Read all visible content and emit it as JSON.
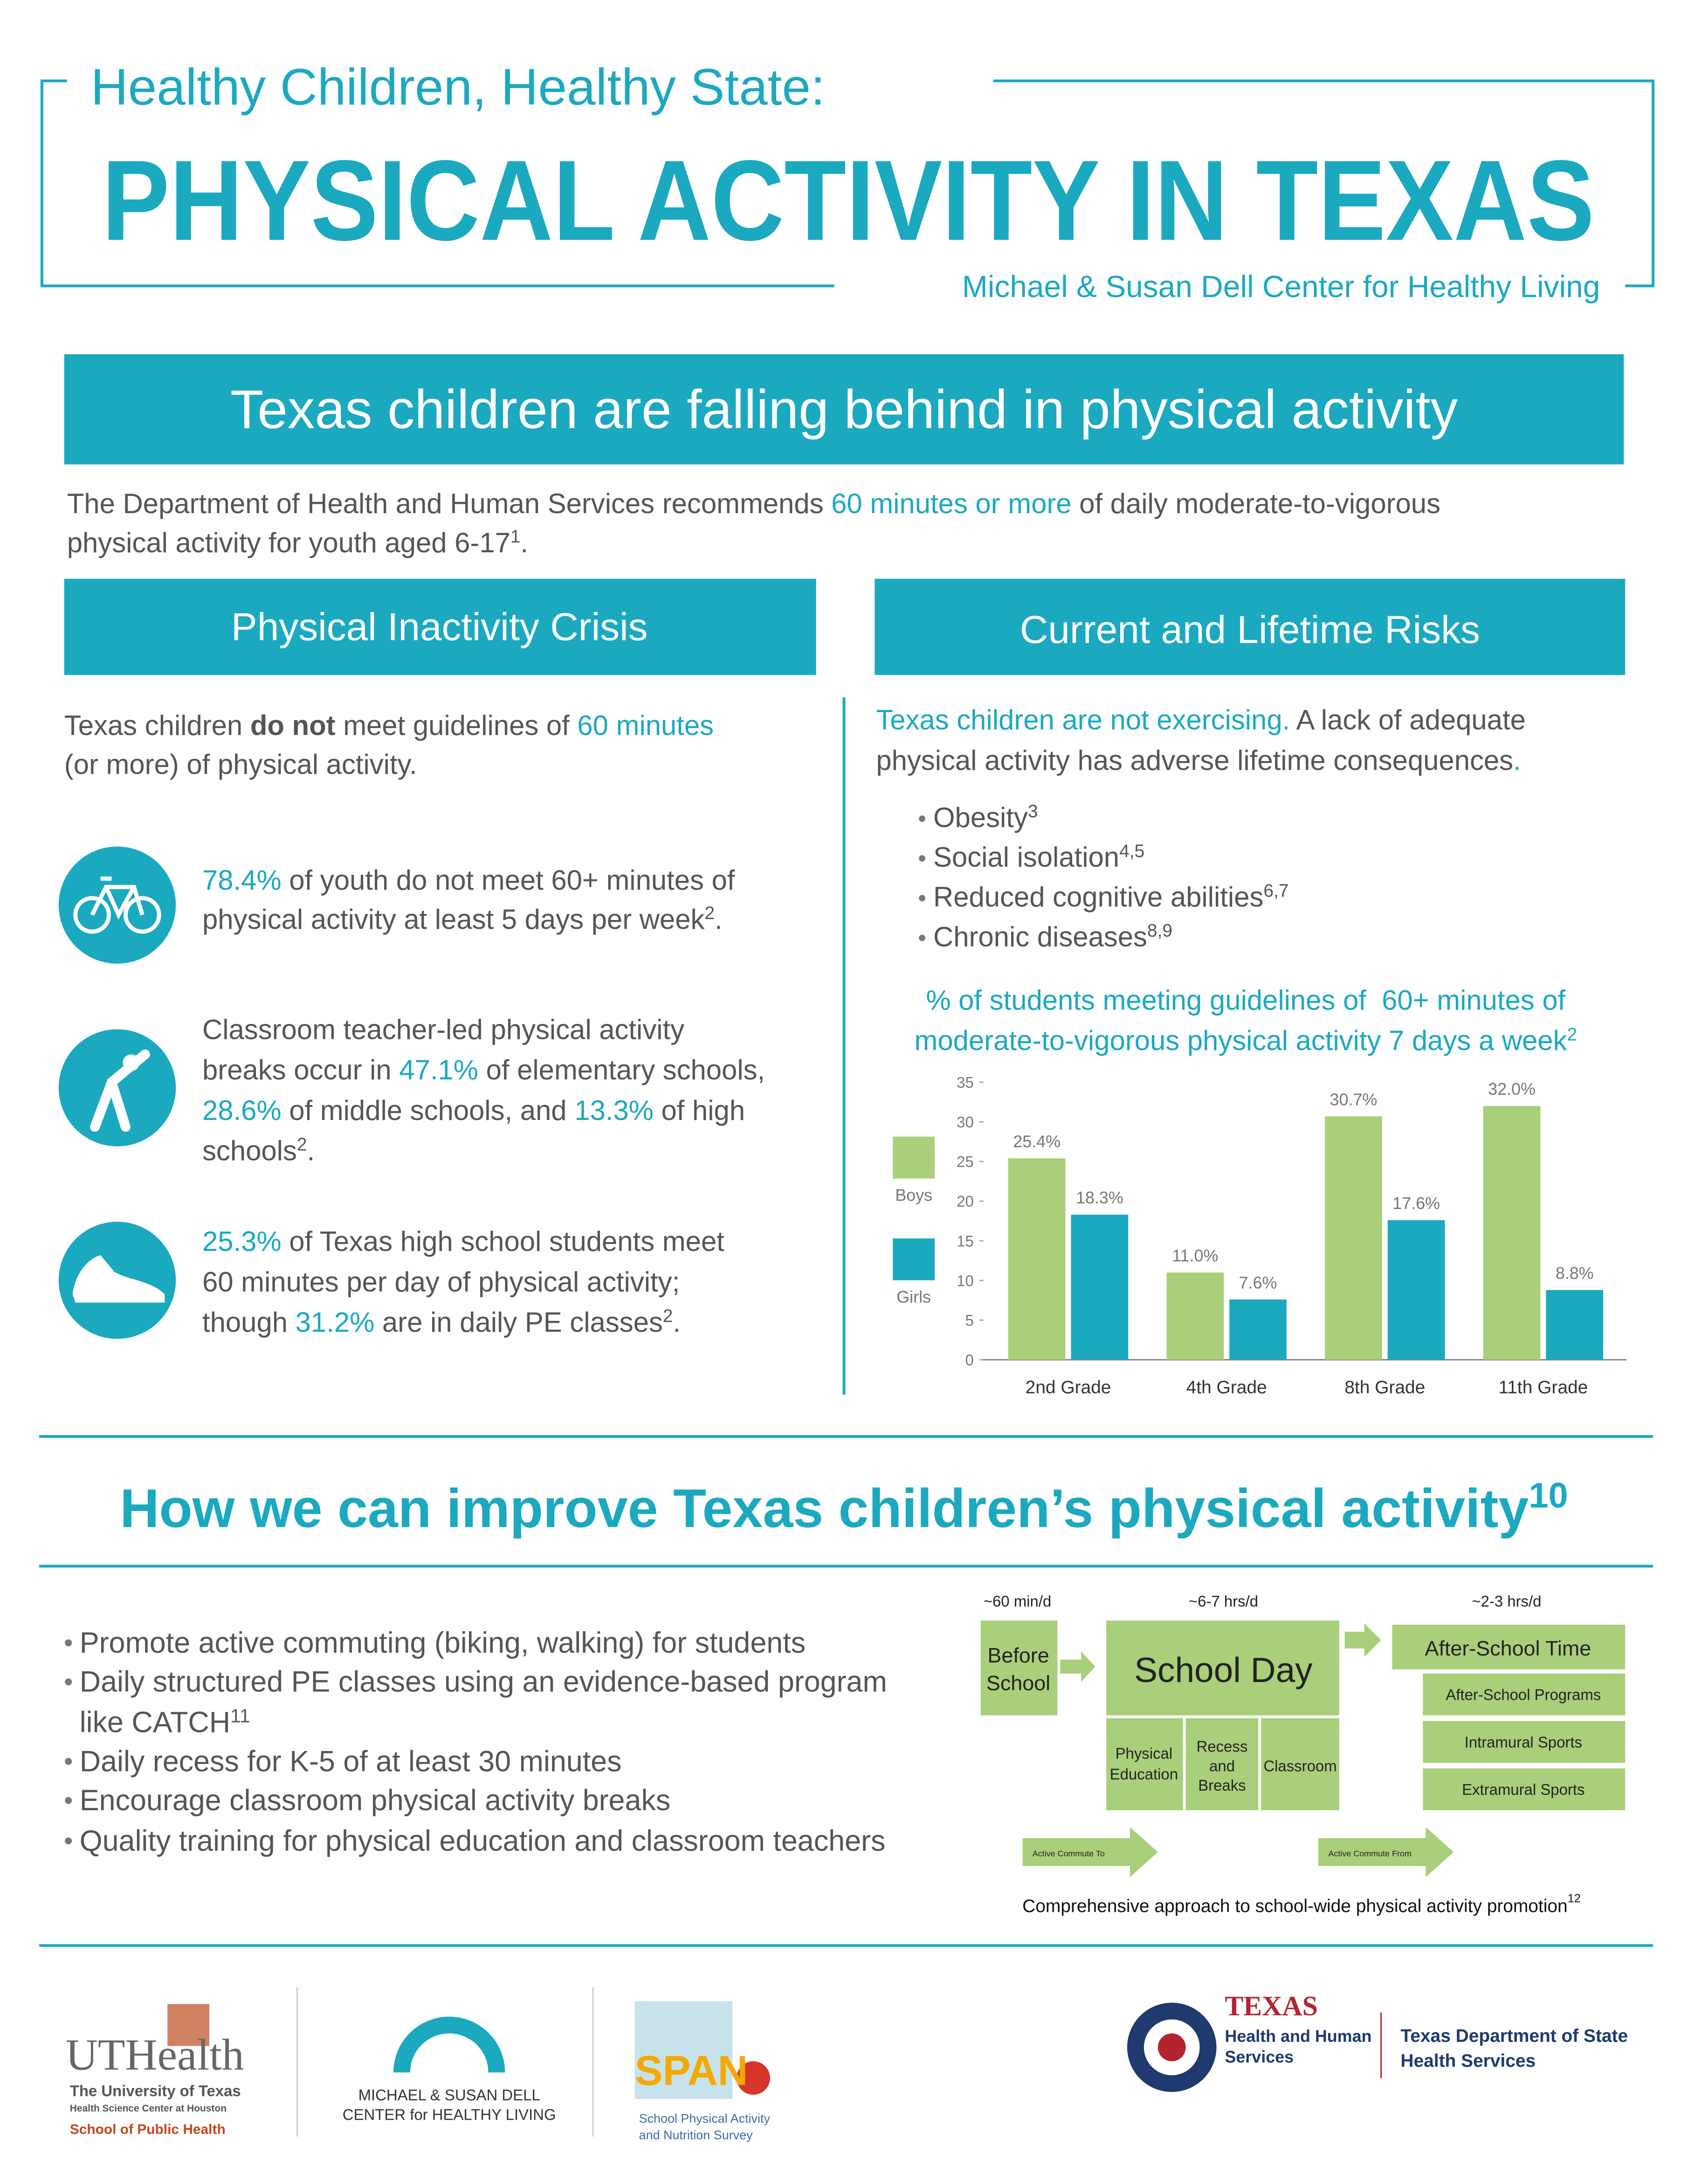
{
  "header": {
    "title": "Healthy Children, Healthy State:",
    "headline": "PHYSICAL ACTIVITY IN TEXAS",
    "subtitle": "Michael & Susan Dell Center for Healthy Living"
  },
  "banner": "Texas children are falling behind in physical activity",
  "intro": {
    "line1": [
      "The Department of Health and Human Services recommends ",
      "60 minutes or more",
      " of daily moderate-to-vigorous"
    ],
    "line2": [
      "physical activity for youth aged 6-17",
      "1",
      "."
    ]
  },
  "left": {
    "heading": "Physical Inactivity Crisis",
    "intro": {
      "line1": [
        "Texas children ",
        "do not",
        " meet guidelines of ",
        "60 minutes"
      ],
      "line2": "(or more) of physical activity."
    },
    "fact1": {
      "line1": [
        "78.4%",
        " of youth do not meet 60+ minutes of"
      ],
      "line2": [
        "physical activity at least 5 days per week",
        "2",
        "."
      ]
    },
    "fact2": {
      "line1": "Classroom teacher-led physical activity",
      "line2": [
        "breaks occur in ",
        "47.1%",
        " of elementary schools,"
      ],
      "line3": [
        "28.6%",
        " of middle schools, and ",
        "13.3%",
        " of high"
      ],
      "line4": [
        "schools",
        "2",
        "."
      ]
    },
    "fact3": {
      "line1": [
        "25.3%",
        " of Texas high school students meet"
      ],
      "line2": "60 minutes per day of physical activity;",
      "line3": [
        "though ",
        "31.2%",
        " are in daily PE classes",
        "2",
        "."
      ]
    }
  },
  "right": {
    "heading": "Current and Lifetime Risks",
    "intro": {
      "line1": [
        "Texas children are not exercising.",
        " A lack of adequate"
      ],
      "line2": [
        "physical activity has adverse lifetime consequences",
        "."
      ]
    },
    "risks": [
      {
        "text": "Obesity",
        "ref": "3"
      },
      {
        "text": "Social isolation",
        "ref": "4,5"
      },
      {
        "text": "Reduced cognitive abilities",
        "ref": "6,7"
      },
      {
        "text": "Chronic diseases",
        "ref": "8,9"
      }
    ]
  },
  "chart_data": {
    "type": "bar",
    "title": [
      "% of students meeting guidelines of  60+ minutes of",
      "moderate-to-vigorous physical activity 7 days a week"
    ],
    "title_ref": "2",
    "categories": [
      "2nd Grade",
      "4th Grade",
      "8th Grade",
      "11th Grade"
    ],
    "series": [
      {
        "name": "Boys",
        "color": "#a9cf7a",
        "values": [
          25.4,
          11.0,
          30.7,
          32.0
        ],
        "value_labels": [
          "25.4%",
          "11.0%",
          "30.7%",
          "32.0%"
        ]
      },
      {
        "name": "Girls",
        "color": "#1ba9c0",
        "values": [
          18.3,
          7.6,
          17.6,
          8.8
        ],
        "value_labels": [
          "18.3%",
          "7.6%",
          "17.6%",
          "8.8%"
        ]
      }
    ],
    "ylim": [
      0,
      35
    ],
    "yticks": [
      0,
      5,
      10,
      15,
      20,
      25,
      30,
      35
    ],
    "grid": false
  },
  "improve": {
    "heading": "How we can improve Texas children’s physical activity",
    "ref": "10",
    "items": [
      "Promote active commuting (biking, walking) for students",
      "Daily structured PE classes using an evidence-based program",
      "like CATCH",
      "11",
      "Daily recess for K-5 of at least 30 minutes",
      "Encourage classroom physical activity breaks",
      "Quality training for physical education and classroom teachers"
    ]
  },
  "diagram": {
    "times": [
      "~60 min/d",
      "~6-7 hrs/d",
      "~2-3 hrs/d"
    ],
    "before": [
      "Before",
      "School"
    ],
    "school": "School Day",
    "school_parts": [
      [
        "Physical",
        "Education"
      ],
      [
        "Recess",
        "and",
        "Breaks"
      ],
      [
        "Classroom"
      ]
    ],
    "after": "After-School Time",
    "after_parts": [
      "After-School Programs",
      "Intramural Sports",
      "Extramural Sports"
    ],
    "commute": [
      "Active Commute To",
      "Active Commute From"
    ],
    "caption": "Comprehensive approach to school-wide physical activity promotion",
    "caption_ref": "12"
  },
  "logos": {
    "uthealth": [
      "UTHealth",
      "The University of Texas",
      "Health Science Center at Houston",
      "School of Public Health"
    ],
    "dell": [
      "MICHAEL & SUSAN DELL",
      "CENTER for HEALTHY LIVING"
    ],
    "span": [
      "SPAN",
      "School Physical Activity",
      "and Nutrition Survey"
    ],
    "hhs": [
      "TEXAS",
      "Health and Human",
      "Services"
    ],
    "dshs": [
      "Texas Department of State",
      "Health Services"
    ]
  }
}
